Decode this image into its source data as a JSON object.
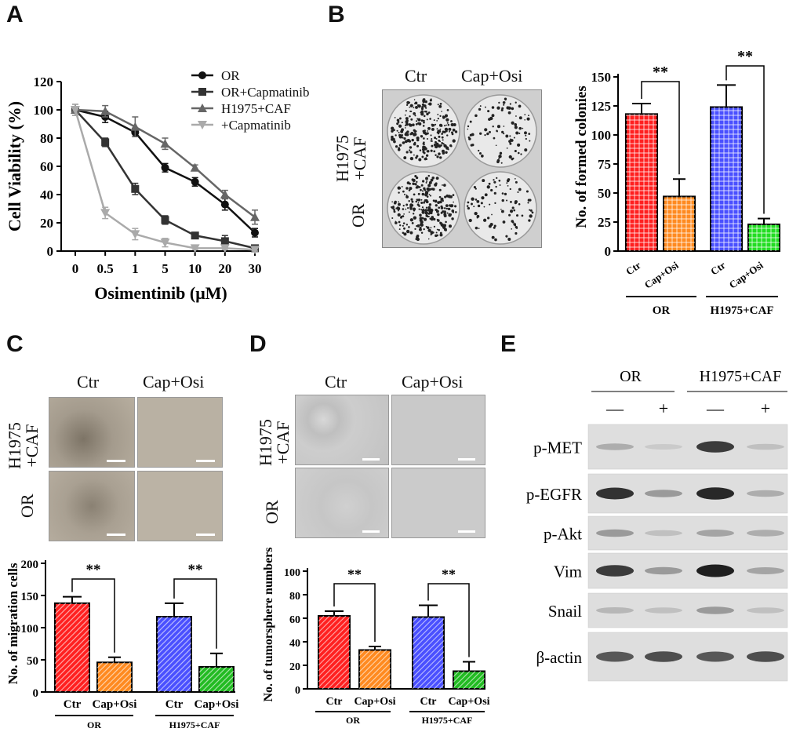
{
  "panels": {
    "A": "A",
    "B": "B",
    "C": "C",
    "D": "D",
    "E": "E"
  },
  "panelA": {
    "chart_data": {
      "type": "line",
      "xlabel": "Osimentinib (μM)",
      "ylabel": "Cell Viability (%)",
      "x_ticks": [
        "0",
        "0.5",
        "1",
        "5",
        "10",
        "20",
        "30"
      ],
      "y_ticks": [
        "0",
        "20",
        "40",
        "60",
        "80",
        "100",
        "120"
      ],
      "ylim": [
        0,
        120
      ],
      "series": [
        {
          "name": "OR",
          "color": "#111111",
          "marker": "circle",
          "values": [
            100,
            95,
            84,
            59,
            49,
            33,
            13
          ],
          "err": [
            4,
            4,
            3,
            3,
            3,
            4,
            3
          ]
        },
        {
          "name": "OR+Capmatinib",
          "color": "#333333",
          "marker": "square",
          "values": [
            100,
            77,
            44,
            22,
            11,
            7,
            2
          ],
          "err": [
            4,
            3,
            4,
            3,
            2,
            4,
            1
          ]
        },
        {
          "name": "H1975+CAF",
          "color": "#666666",
          "marker": "triangle",
          "values": [
            100,
            99,
            88,
            76,
            59,
            40,
            24
          ],
          "err": [
            4,
            4,
            7,
            4,
            2,
            3,
            5
          ]
        },
        {
          "name": "+Capmatinib",
          "color": "#aaaaaa",
          "marker": "triangle-down",
          "values": [
            100,
            27,
            12,
            6,
            2,
            2,
            1
          ],
          "err": [
            4,
            4,
            4,
            3,
            1,
            1,
            1
          ]
        }
      ]
    }
  },
  "panelB": {
    "photo_cols": [
      "Ctr",
      "Cap+Osi"
    ],
    "photo_rows": [
      "H1975\n+CAF",
      "OR"
    ],
    "chart_data": {
      "type": "bar",
      "ylabel": "No. of formed colonies",
      "y_ticks": [
        "0",
        "25",
        "50",
        "75",
        "100",
        "125",
        "150"
      ],
      "ylim": [
        0,
        150
      ],
      "categories": [
        "Ctr",
        "Cap+Osi",
        "Ctr",
        "Cap+Osi"
      ],
      "groups": [
        "OR",
        "H1975+CAF"
      ],
      "values": [
        118,
        47,
        124,
        23
      ],
      "err": [
        9,
        15,
        19,
        5
      ],
      "colors": [
        "#ff2020",
        "#ff8a20",
        "#4a50ff",
        "#22dd22"
      ],
      "significance": [
        "**",
        "**"
      ]
    }
  },
  "panelC": {
    "photo_cols": [
      "Ctr",
      "Cap+Osi"
    ],
    "photo_rows": [
      "H1975\n+CAF",
      "OR"
    ],
    "chart_data": {
      "type": "bar",
      "ylabel": "No. of migration cells",
      "y_ticks": [
        "0",
        "50",
        "100",
        "150",
        "200"
      ],
      "ylim": [
        0,
        200
      ],
      "categories": [
        "Ctr",
        "Cap+Osi",
        "Ctr",
        "Cap+Osi"
      ],
      "groups": [
        "OR",
        "H1975+CAF"
      ],
      "values": [
        138,
        46,
        117,
        39
      ],
      "err": [
        10,
        8,
        21,
        21
      ],
      "colors": [
        "#ff2020",
        "#ff8a20",
        "#4a50ff",
        "#22bb22"
      ],
      "significance": [
        "**",
        "**"
      ]
    }
  },
  "panelD": {
    "photo_cols": [
      "Ctr",
      "Cap+Osi"
    ],
    "photo_rows": [
      "H1975\n+CAF",
      "OR"
    ],
    "chart_data": {
      "type": "bar",
      "ylabel": "No. of tumorsphere numbers",
      "y_ticks": [
        "0",
        "20",
        "40",
        "60",
        "80",
        "100"
      ],
      "ylim": [
        0,
        100
      ],
      "categories": [
        "Ctr",
        "Cap+Osi",
        "Ctr",
        "Cap+Osi"
      ],
      "groups": [
        "OR",
        "H1975+CAF"
      ],
      "values": [
        62,
        33,
        61,
        15
      ],
      "err": [
        4,
        3,
        10,
        8
      ],
      "colors": [
        "#ff2020",
        "#ff8a20",
        "#4a50ff",
        "#22bb22"
      ],
      "significance": [
        "**",
        "**"
      ]
    }
  },
  "panelE": {
    "groups": [
      "OR",
      "H1975+CAF"
    ],
    "treatments": [
      "—",
      "+",
      "—",
      "+"
    ],
    "proteins": [
      "p-MET",
      "p-EGFR",
      "p-Akt",
      "Vim",
      "Snail",
      "β-actin"
    ],
    "band_intensity": [
      [
        0.25,
        0.1,
        0.85,
        0.15
      ],
      [
        0.9,
        0.35,
        0.95,
        0.25
      ],
      [
        0.35,
        0.15,
        0.3,
        0.25
      ],
      [
        0.85,
        0.35,
        1.0,
        0.3
      ],
      [
        0.2,
        0.15,
        0.35,
        0.15
      ],
      [
        0.7,
        0.75,
        0.7,
        0.75
      ]
    ]
  }
}
